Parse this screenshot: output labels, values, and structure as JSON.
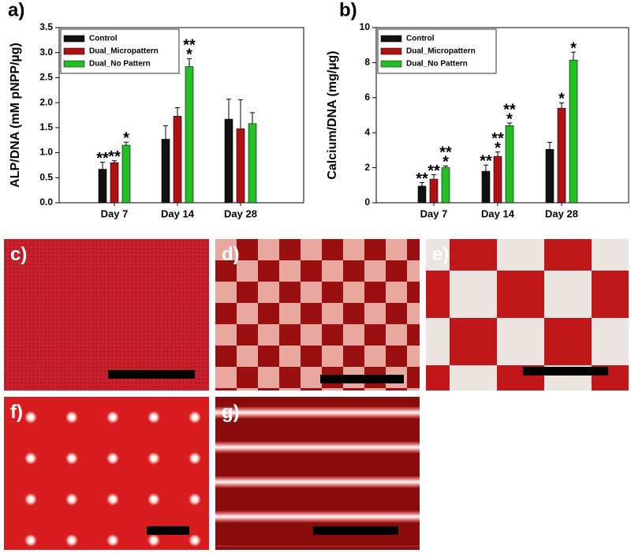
{
  "chart_data": [
    {
      "type": "bar",
      "label": "a)",
      "ylabel": "ALP/DNA (mM pNPP/µg)",
      "categories": [
        "Day 7",
        "Day 14",
        "Day 28"
      ],
      "ylim": [
        0,
        3.5
      ],
      "yticks": [
        {
          "value": 0,
          "label": "0.0"
        },
        0.5,
        {
          "value": 1,
          "label": "1.0"
        },
        1.5,
        {
          "value": 2,
          "label": "2.0"
        },
        2.5,
        {
          "value": 3,
          "label": "3.0"
        },
        3.5
      ],
      "legend": "upper left",
      "series": [
        {
          "name": "Control",
          "color": "#111111",
          "values": [
            0.67,
            1.27,
            1.67
          ],
          "errors": [
            0.14,
            0.27,
            0.4
          ],
          "marks": [
            [
              "**"
            ],
            null,
            null
          ]
        },
        {
          "name": "Dual_Micropattern",
          "color": "#b01010",
          "values": [
            0.8,
            1.73,
            1.48
          ],
          "errors": [
            0.04,
            0.17,
            0.58
          ],
          "marks": [
            [
              "**"
            ],
            null,
            null
          ]
        },
        {
          "name": "Dual_No Pattern",
          "color": "#22c022",
          "values": [
            1.15,
            2.72,
            1.58
          ],
          "errors": [
            0.06,
            0.16,
            0.22
          ],
          "marks": [
            [
              "*"
            ],
            [
              "**",
              "*"
            ],
            null
          ]
        }
      ]
    },
    {
      "type": "bar",
      "label": "b)",
      "ylabel": "Calcium/DNA (mg/µg)",
      "categories": [
        "Day 7",
        "Day 14",
        "Day 28"
      ],
      "ylim": [
        0,
        10
      ],
      "yticks": [
        0,
        2,
        4,
        6,
        8,
        10
      ],
      "legend": "upper left",
      "series": [
        {
          "name": "Control",
          "color": "#111111",
          "values": [
            0.95,
            1.8,
            3.05
          ],
          "errors": [
            0.2,
            0.35,
            0.4
          ],
          "marks": [
            [
              "**"
            ],
            [
              "**"
            ],
            null
          ]
        },
        {
          "name": "Dual_Micropattern",
          "color": "#b01010",
          "values": [
            1.35,
            2.65,
            5.4
          ],
          "errors": [
            0.25,
            0.25,
            0.3
          ],
          "marks": [
            [
              "**"
            ],
            [
              "**",
              "*"
            ],
            [
              "*"
            ]
          ]
        },
        {
          "name": "Dual_No Pattern",
          "color": "#22c022",
          "values": [
            2.0,
            4.4,
            8.15
          ],
          "errors": [
            0.1,
            0.15,
            0.45
          ],
          "marks": [
            [
              "**",
              "*"
            ],
            [
              "**",
              "*"
            ],
            [
              "*"
            ]
          ]
        }
      ]
    }
  ],
  "panels": [
    "c)",
    "d)",
    "e)",
    "f)",
    "g)"
  ]
}
